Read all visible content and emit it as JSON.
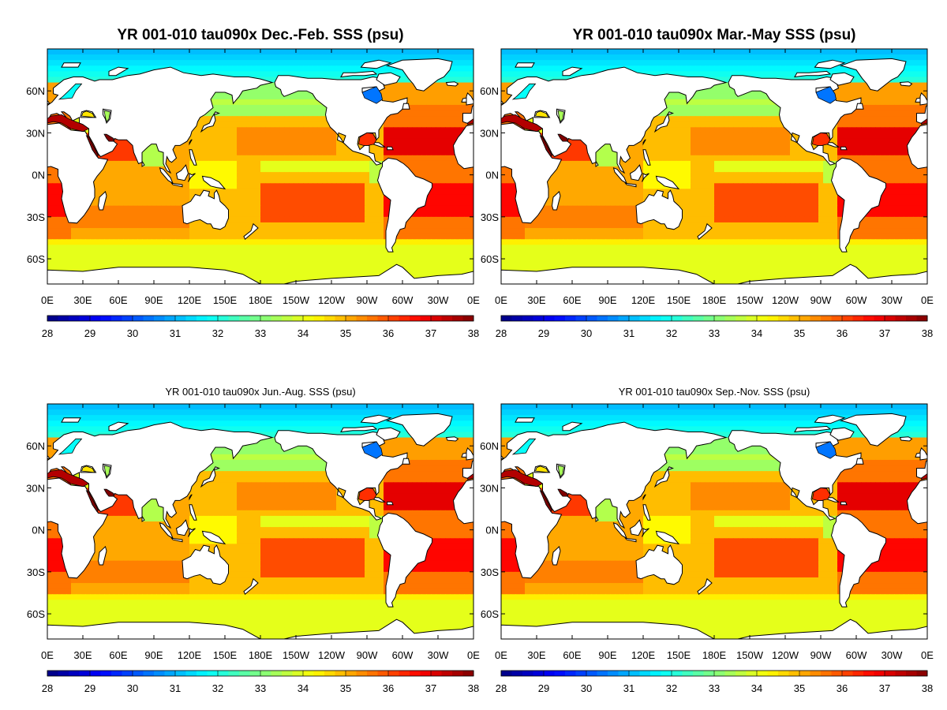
{
  "chart_data": [
    {
      "type": "heatmap",
      "title": "YR 001-010 tau090x Dec.-Feb. SSS (psu)",
      "xticks": [
        "0E",
        "30E",
        "60E",
        "90E",
        "120E",
        "150E",
        "180E",
        "150W",
        "120W",
        "90W",
        "60W",
        "30W",
        "0E"
      ],
      "yticks": [
        "60N",
        "30N",
        "0N",
        "30S",
        "60S"
      ],
      "colorbar_ticks": [
        "28",
        "29",
        "30",
        "31",
        "32",
        "33",
        "34",
        "35",
        "36",
        "37",
        "38"
      ],
      "xlim": [
        0,
        360
      ],
      "ylim": [
        -78,
        90
      ],
      "clim": [
        28,
        38
      ],
      "field": "sea surface salinity",
      "regions": {
        "atlantic_subtropics": 36.8,
        "mediterranean_caribbean": 37.0,
        "pacific_subtropics": 35.3,
        "indian_ocean": 35.2,
        "southern_ocean": 34.2,
        "equatorial_pacific_east": 34.0,
        "north_pacific": 33.2,
        "arctic": 32.0
      }
    },
    {
      "type": "heatmap",
      "title": "YR 001-010 tau090x Mar.-May SSS (psu)",
      "xticks": [
        "0E",
        "30E",
        "60E",
        "90E",
        "120E",
        "150E",
        "180E",
        "150W",
        "120W",
        "90W",
        "60W",
        "30W",
        "0E"
      ],
      "yticks": [
        "60N",
        "30N",
        "0N",
        "30S",
        "60S"
      ],
      "colorbar_ticks": [
        "28",
        "29",
        "30",
        "31",
        "32",
        "33",
        "34",
        "35",
        "36",
        "37",
        "38"
      ],
      "xlim": [
        0,
        360
      ],
      "ylim": [
        -78,
        90
      ],
      "clim": [
        28,
        38
      ],
      "field": "sea surface salinity",
      "regions": {
        "atlantic_subtropics": 36.8,
        "mediterranean_caribbean": 37.0,
        "pacific_subtropics": 35.3,
        "indian_ocean": 35.2,
        "southern_ocean": 34.2,
        "equatorial_pacific_east": 34.0,
        "north_pacific": 33.2,
        "arctic": 32.0
      }
    },
    {
      "type": "heatmap",
      "title": "YR 001-010 tau090x Jun.-Aug. SSS (psu)",
      "xticks": [
        "0E",
        "30E",
        "60E",
        "90E",
        "120E",
        "150E",
        "180E",
        "150W",
        "120W",
        "90W",
        "60W",
        "30W",
        "0E"
      ],
      "yticks": [
        "60N",
        "30N",
        "0N",
        "30S",
        "60S"
      ],
      "colorbar_ticks": [
        "28",
        "29",
        "30",
        "31",
        "32",
        "33",
        "34",
        "35",
        "36",
        "37",
        "38"
      ],
      "xlim": [
        0,
        360
      ],
      "ylim": [
        -78,
        90
      ],
      "clim": [
        28,
        38
      ],
      "field": "sea surface salinity",
      "regions": {
        "atlantic_subtropics": 36.8,
        "mediterranean_caribbean": 37.0,
        "pacific_subtropics": 35.3,
        "indian_ocean": 35.2,
        "southern_ocean": 34.2,
        "equatorial_pacific_east": 34.0,
        "north_pacific": 33.2,
        "arctic": 32.0
      }
    },
    {
      "type": "heatmap",
      "title": "YR 001-010 tau090x Sep.-Nov. SSS (psu)",
      "xticks": [
        "0E",
        "30E",
        "60E",
        "90E",
        "120E",
        "150E",
        "180E",
        "150W",
        "120W",
        "90W",
        "60W",
        "30W",
        "0E"
      ],
      "yticks": [
        "60N",
        "30N",
        "0N",
        "30S",
        "60S"
      ],
      "colorbar_ticks": [
        "28",
        "29",
        "30",
        "31",
        "32",
        "33",
        "34",
        "35",
        "36",
        "37",
        "38"
      ],
      "xlim": [
        0,
        360
      ],
      "ylim": [
        -78,
        90
      ],
      "clim": [
        28,
        38
      ],
      "field": "sea surface salinity",
      "regions": {
        "atlantic_subtropics": 36.8,
        "mediterranean_caribbean": 37.0,
        "pacific_subtropics": 35.3,
        "indian_ocean": 35.2,
        "southern_ocean": 34.2,
        "equatorial_pacific_east": 34.0,
        "north_pacific": 33.2,
        "arctic": 32.0
      }
    }
  ],
  "colormap": {
    "name": "jet",
    "colors": [
      "#00007f",
      "#0000ff",
      "#007fff",
      "#00ffff",
      "#7fff7f",
      "#ffff00",
      "#ff7f00",
      "#ff0000",
      "#7f0000"
    ]
  }
}
